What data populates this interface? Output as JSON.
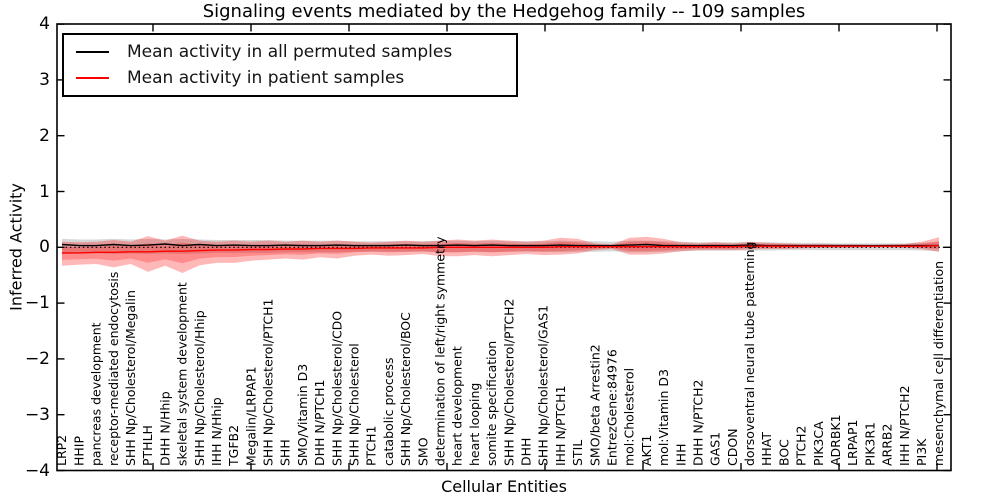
{
  "title": "Signaling events mediated by the Hedgehog family -- 109 samples",
  "legend": {
    "entries": [
      {
        "label": "Mean activity in all permuted samples",
        "color": "#000000"
      },
      {
        "label": "Mean activity in patient samples",
        "color": "#ff0000"
      }
    ]
  },
  "axes": {
    "ylabel": "Inferred Activity",
    "xlabel": "Cellular Entities",
    "ytick_labels": [
      "4",
      "3",
      "2",
      "1",
      "0",
      "−1",
      "−2",
      "−3",
      "−4"
    ],
    "ytick_values": [
      4,
      3,
      2,
      1,
      0,
      -1,
      -2,
      -3,
      -4
    ]
  },
  "colors": {
    "permuted_line": "#000000",
    "patient_line": "#ff0000",
    "patient_band": "rgba(255,0,0,0.28)",
    "patient_band_inner": "rgba(255,0,0,0.24)",
    "permuted_band": "rgba(110,110,110,0.28)",
    "zero_line": "#000000"
  },
  "chart_data": {
    "type": "line",
    "title": "Signaling events mediated by the Hedgehog family -- 109 samples",
    "xlabel": "Cellular Entities",
    "ylabel": "Inferred Activity",
    "ylim": [
      -4,
      4
    ],
    "grid": false,
    "legend_position": "upper left",
    "zero_reference_line": 0,
    "inner_band_scale": 0.55,
    "categories": [
      "LRP2",
      "HHIP",
      "pancreas development",
      "receptor-mediated endocytosis",
      "SHH Np/Cholesterol/Megalin",
      "PTHLH",
      "DHH N/Hhip",
      "skeletal system development",
      "SHH Np/Cholesterol/Hhip",
      "IHH N/Hhip",
      "TGFB2",
      "Megalin/LRPAP1",
      "SHH Np/Cholesterol/PTCH1",
      "SHH",
      "SMO/Vitamin D3",
      "DHH N/PTCH1",
      "SHH Np/Cholesterol/CDO",
      "SHH Np/Cholesterol",
      "PTCH1",
      "catabolic process",
      "SHH Np/Cholesterol/BOC",
      "SMO",
      "determination of left/right symmetry",
      "heart development",
      "heart looping",
      "somite specification",
      "SHH Np/Cholesterol/PTCH2",
      "DHH",
      "SHH Np/Cholesterol/GAS1",
      "IHH N/PTCH1",
      "STIL",
      "SMO/beta Arrestin2",
      "EntrezGene:84976",
      "mol:Cholesterol",
      "AKT1",
      "mol:Vitamin D3",
      "IHH",
      "DHH N/PTCH2",
      "GAS1",
      "CDON",
      "dorsoventral neural tube patterning",
      "HHAT",
      "BOC",
      "PTCH2",
      "PIK3CA",
      "ADRBK1",
      "LRPAP1",
      "PIK3R1",
      "ARRB2",
      "IHH N/PTCH2",
      "PI3K",
      "mesenchymal cell differentiation"
    ],
    "series": [
      {
        "name": "Mean activity in all permuted samples",
        "color": "#000000",
        "values": [
          0.05,
          0.03,
          0.03,
          0.05,
          0.03,
          0.04,
          0.06,
          0.03,
          0.05,
          0.03,
          0.04,
          0.03,
          0.03,
          0.04,
          0.03,
          0.03,
          0.04,
          0.03,
          0.03,
          0.03,
          0.04,
          0.03,
          0.03,
          0.04,
          0.03,
          0.04,
          0.03,
          0.03,
          0.03,
          0.04,
          0.03,
          0.03,
          0.03,
          0.04,
          0.05,
          0.03,
          0.03,
          0.03,
          0.03,
          0.03,
          0.04,
          0.03,
          0.03,
          0.03,
          0.03,
          0.03,
          0.03,
          0.03,
          0.03,
          0.03,
          0.03,
          0.03
        ]
      },
      {
        "name": "Mean activity in patient samples",
        "color": "#ff0000",
        "values": [
          -0.1,
          -0.1,
          -0.09,
          -0.09,
          -0.08,
          -0.08,
          -0.07,
          -0.07,
          -0.06,
          -0.05,
          -0.05,
          -0.04,
          -0.04,
          -0.03,
          -0.03,
          -0.02,
          -0.02,
          -0.02,
          -0.01,
          -0.01,
          -0.01,
          -0.01,
          0.0,
          0.0,
          0.0,
          0.0,
          0.0,
          0.0,
          0.0,
          0.01,
          0.01,
          0.01,
          0.01,
          0.01,
          0.01,
          0.01,
          0.01,
          0.01,
          0.01,
          0.01,
          0.02,
          0.02,
          0.02,
          0.02,
          0.02,
          0.02,
          0.02,
          0.02,
          0.02,
          0.02,
          0.02,
          0.03
        ]
      }
    ],
    "bands": [
      {
        "name": "permuted samples band",
        "color": "rgba(110,110,110,0.28)",
        "upper": [
          0.15,
          0.14,
          0.14,
          0.15,
          0.14,
          0.15,
          0.14,
          0.15,
          0.14,
          0.13,
          0.13,
          0.13,
          0.13,
          0.12,
          0.12,
          0.12,
          0.12,
          0.11,
          0.11,
          0.11,
          0.11,
          0.11,
          0.12,
          0.12,
          0.11,
          0.12,
          0.11,
          0.11,
          0.11,
          0.12,
          0.11,
          0.11,
          0.1,
          0.12,
          0.12,
          0.11,
          0.1,
          0.09,
          0.09,
          0.09,
          0.09,
          0.09,
          0.08,
          0.08,
          0.08,
          0.07,
          0.07,
          0.07,
          0.07,
          0.07,
          0.08,
          0.09
        ],
        "lower": [
          -0.12,
          -0.11,
          -0.11,
          -0.12,
          -0.11,
          -0.12,
          -0.11,
          -0.12,
          -0.11,
          -0.1,
          -0.1,
          -0.1,
          -0.1,
          -0.09,
          -0.09,
          -0.09,
          -0.09,
          -0.08,
          -0.08,
          -0.08,
          -0.08,
          -0.08,
          -0.09,
          -0.09,
          -0.08,
          -0.09,
          -0.08,
          -0.08,
          -0.08,
          -0.09,
          -0.08,
          -0.08,
          -0.07,
          -0.09,
          -0.09,
          -0.08,
          -0.07,
          -0.06,
          -0.06,
          -0.06,
          -0.06,
          -0.06,
          -0.05,
          -0.05,
          -0.05,
          -0.05,
          -0.05,
          -0.05,
          -0.05,
          -0.05,
          -0.06,
          -0.07
        ]
      },
      {
        "name": "patient samples band",
        "color": "rgba(255,0,0,0.28)",
        "upper": [
          0.1,
          0.09,
          0.1,
          0.13,
          0.1,
          0.2,
          0.12,
          0.21,
          0.12,
          0.1,
          0.12,
          0.1,
          0.12,
          0.1,
          0.12,
          0.1,
          0.12,
          0.1,
          0.08,
          0.1,
          0.12,
          0.1,
          0.12,
          0.14,
          0.12,
          0.14,
          0.12,
          0.1,
          0.12,
          0.17,
          0.15,
          0.07,
          0.05,
          0.17,
          0.19,
          0.15,
          0.09,
          0.07,
          0.09,
          0.07,
          0.1,
          0.08,
          0.07,
          0.06,
          0.06,
          0.05,
          0.05,
          0.04,
          0.05,
          0.06,
          0.1,
          0.18
        ],
        "lower": [
          -0.33,
          -0.31,
          -0.3,
          -0.36,
          -0.3,
          -0.44,
          -0.33,
          -0.46,
          -0.32,
          -0.28,
          -0.28,
          -0.24,
          -0.22,
          -0.2,
          -0.22,
          -0.18,
          -0.2,
          -0.15,
          -0.13,
          -0.15,
          -0.14,
          -0.12,
          -0.16,
          -0.16,
          -0.14,
          -0.16,
          -0.14,
          -0.12,
          -0.14,
          -0.13,
          -0.11,
          -0.05,
          -0.03,
          -0.13,
          -0.13,
          -0.11,
          -0.07,
          -0.05,
          -0.05,
          -0.05,
          -0.04,
          -0.03,
          -0.03,
          -0.02,
          -0.01,
          -0.01,
          -0.01,
          0.0,
          0.0,
          -0.01,
          -0.03,
          -0.08
        ]
      }
    ]
  }
}
